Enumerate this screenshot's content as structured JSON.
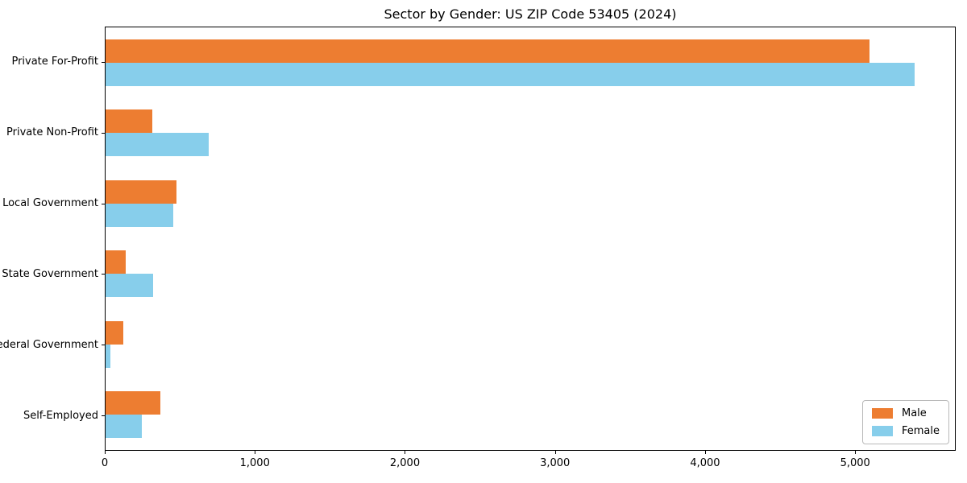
{
  "chart_data": {
    "type": "bar",
    "orientation": "horizontal",
    "title": "Sector by Gender: US ZIP Code 53405 (2024)",
    "categories": [
      "Private For-Profit",
      "Private Non-Profit",
      "Local Government",
      "State Government",
      "Federal Government",
      "Self-Employed"
    ],
    "series": [
      {
        "name": "Male",
        "color": "#ED7D31",
        "values": [
          5100,
          310,
          475,
          135,
          120,
          365
        ]
      },
      {
        "name": "Female",
        "color": "#87CEEB",
        "values": [
          5400,
          690,
          450,
          320,
          30,
          240
        ]
      }
    ],
    "xlim": [
      0,
      5670
    ],
    "x_ticks": [
      0,
      1000,
      2000,
      3000,
      4000,
      5000
    ],
    "x_tick_labels": [
      "0",
      "1,000",
      "2,000",
      "3,000",
      "4,000",
      "5,000"
    ],
    "xlabel": "",
    "ylabel": "",
    "grid": false,
    "legend": {
      "position": "lower right",
      "entries": [
        "Male",
        "Female"
      ]
    },
    "colors": {
      "background": "#ffffff",
      "axis": "#000000",
      "male": "#ED7D31",
      "female": "#87CEEB"
    }
  }
}
